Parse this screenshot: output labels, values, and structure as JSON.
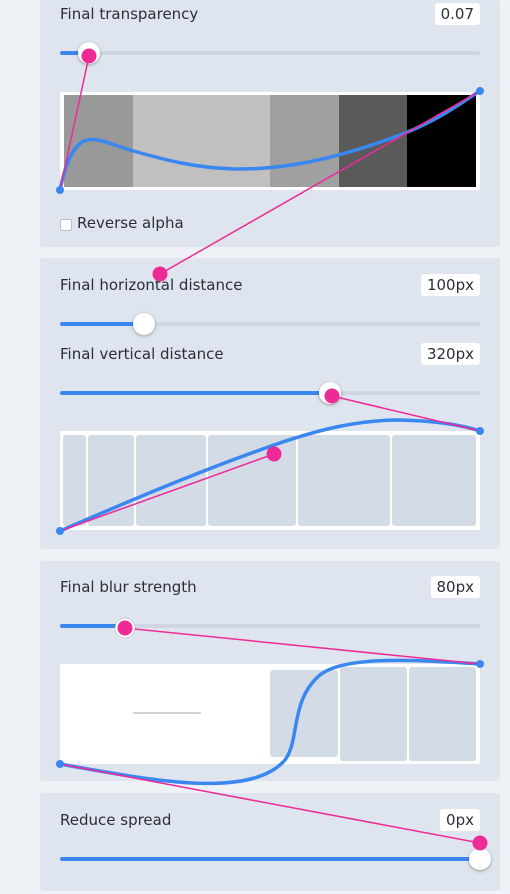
{
  "colors": {
    "accent": "#3b87f0",
    "handle": "#ee2a97",
    "panel": "#dfe5ee",
    "track": "#cfd6e1"
  },
  "transparency": {
    "label": "Final transparency",
    "value": "0.07",
    "slider_fraction": 0.07,
    "swatches": [
      "#999999",
      "#c0c0c0",
      "#a0a0a0",
      "#5a5a5a",
      "#000000"
    ]
  },
  "reverse_alpha": {
    "label": "Reverse alpha",
    "checked": false
  },
  "horizontal": {
    "label": "Final horizontal distance",
    "value": "100px",
    "slider_fraction": 0.2
  },
  "vertical": {
    "label": "Final vertical distance",
    "value": "320px",
    "slider_fraction": 0.64
  },
  "blur": {
    "label": "Final blur strength",
    "value": "80px",
    "slider_fraction": 0.16
  },
  "spread": {
    "label": "Reduce spread",
    "value": "0px",
    "slider_fraction": 1.0
  }
}
